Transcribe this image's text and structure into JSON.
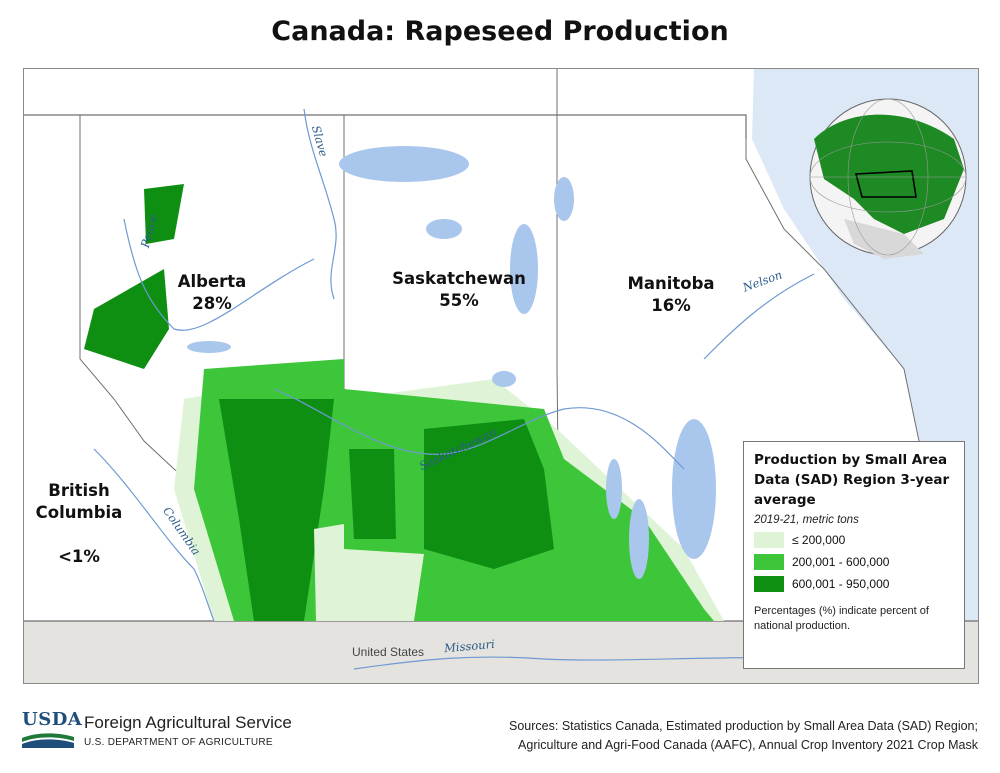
{
  "title": "Canada: Rapeseed Production",
  "provinces": [
    {
      "name": "Alberta",
      "share": "28%"
    },
    {
      "name": "Saskatchewan",
      "share": "55%"
    },
    {
      "name": "Manitoba",
      "share": "16%"
    },
    {
      "name": "British\nColumbia",
      "share": "<1%"
    }
  ],
  "rivers": {
    "slave": "Slave",
    "peace": "Peace",
    "nelson": "Nelson",
    "saskatchewan": "Saskatchewan",
    "columbia": "Columbia",
    "missouri": "Missouri"
  },
  "country_label": "United States",
  "legend": {
    "title": "Production by Small Area Data (SAD) Region 3-year average",
    "subtitle": "2019-21, metric tons",
    "classes": [
      {
        "label": "≤ 200,000",
        "color": "#dff4d6"
      },
      {
        "label": "200,001 - 600,000",
        "color": "#3dc63a"
      },
      {
        "label": "600,001 - 950,000",
        "color": "#0e8f12"
      }
    ],
    "note": "Percentages (%) indicate percent of national production."
  },
  "colors": {
    "water": "#a9c6ec",
    "us_land": "#e4e3df",
    "ocean": "#dde8f7",
    "border": "#6f6f6f"
  },
  "footer": {
    "logo_text": "USDA",
    "agency": "Foreign Agricultural Service",
    "department": "U.S. DEPARTMENT OF AGRICULTURE",
    "sources_line1": "Sources: Statistics Canada, Estimated production by Small Area Data (SAD) Region;",
    "sources_line2": "Agriculture and Agri-Food Canada (AAFC), Annual Crop Inventory 2021 Crop Mask"
  }
}
